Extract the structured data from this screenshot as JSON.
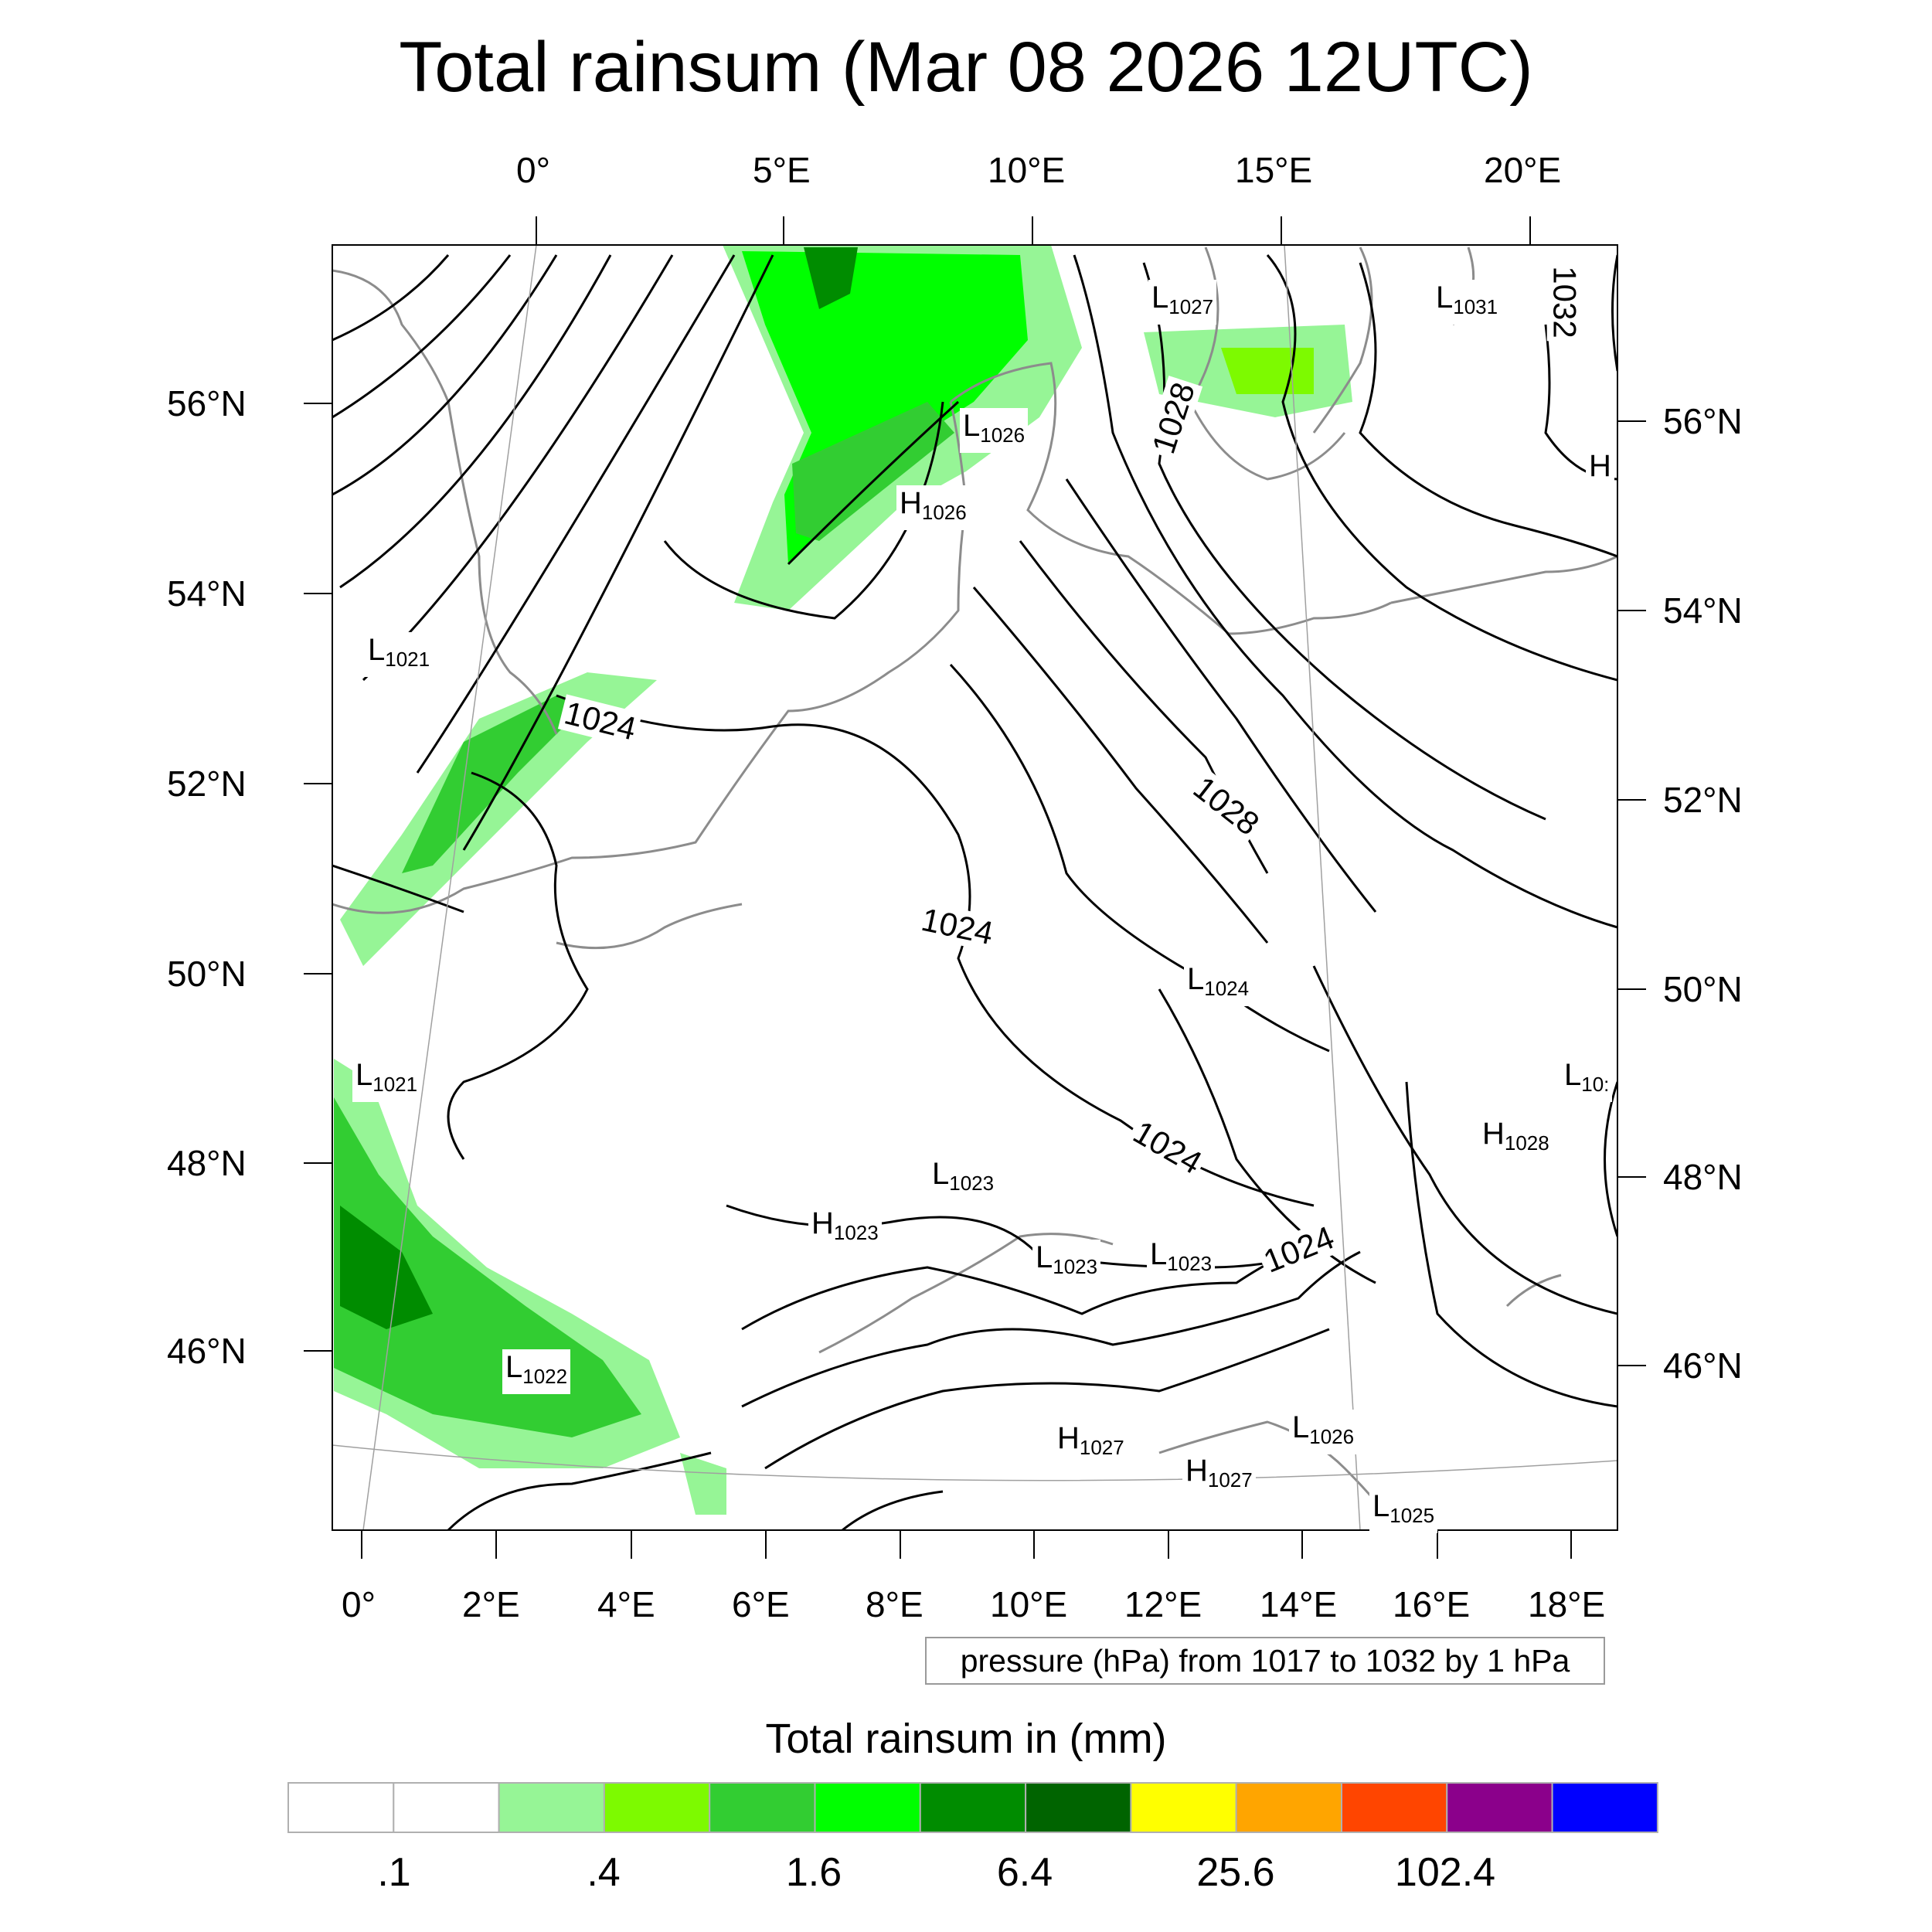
{
  "title": "Total rainsum (Mar 08 2026 12UTC)",
  "top_lon_labels": [
    "0°",
    "5°E",
    "10°E",
    "15°E",
    "20°E"
  ],
  "bottom_lon_labels": [
    "0°",
    "2°E",
    "4°E",
    "6°E",
    "8°E",
    "10°E",
    "12°E",
    "14°E",
    "16°E",
    "18°E"
  ],
  "left_lat_labels": [
    "56°N",
    "54°N",
    "52°N",
    "50°N",
    "48°N",
    "46°N"
  ],
  "right_lat_labels": [
    "56°N",
    "54°N",
    "52°N",
    "50°N",
    "48°N",
    "46°N"
  ],
  "pressure_centers": [
    {
      "type": "L",
      "value": "1027"
    },
    {
      "type": "L",
      "value": "1031"
    },
    {
      "type": "L",
      "value": "1026"
    },
    {
      "type": "H",
      "value": "1026"
    },
    {
      "type": "H",
      "value": ""
    },
    {
      "type": "L",
      "value": "1021"
    },
    {
      "type": "L",
      "value": "1024"
    },
    {
      "type": "L",
      "value": "1021"
    },
    {
      "type": "L",
      "value": "10:"
    },
    {
      "type": "H",
      "value": "1028"
    },
    {
      "type": "L",
      "value": "1023"
    },
    {
      "type": "H",
      "value": "1023"
    },
    {
      "type": "L",
      "value": "1023"
    },
    {
      "type": "L",
      "value": "1023"
    },
    {
      "type": "L",
      "value": "1022"
    },
    {
      "type": "H",
      "value": "1027"
    },
    {
      "type": "L",
      "value": "1026"
    },
    {
      "type": "H",
      "value": "1027"
    },
    {
      "type": "L",
      "value": "1025"
    }
  ],
  "isobar_labels": [
    "1024",
    "1028",
    "1028",
    "1024",
    "1024",
    "1024",
    "1032"
  ],
  "contour_note": "pressure (hPa) from 1017 to 1032 by 1 hPa",
  "colorbar": {
    "title": "Total rainsum in (mm)",
    "colors": [
      "#ffffff",
      "#ffffff",
      "#96f596",
      "#7dfa00",
      "#32cd32",
      "#00ff00",
      "#008c00",
      "#006400",
      "#ffff00",
      "#ffa500",
      "#ff4500",
      "#8b008b",
      "#0000ff"
    ],
    "labels": [
      ".1",
      ".4",
      "1.6",
      "6.4",
      "25.6",
      "102.4"
    ]
  },
  "colors": {
    "rain_light": "#96f596",
    "rain_lime": "#7dfa00",
    "rain_mid": "#32cd32",
    "rain_bright": "#00ff00",
    "rain_dark": "#008c00",
    "rain_darkest": "#006400",
    "coastline": "#8c8c8c",
    "isobar": "#000000"
  }
}
